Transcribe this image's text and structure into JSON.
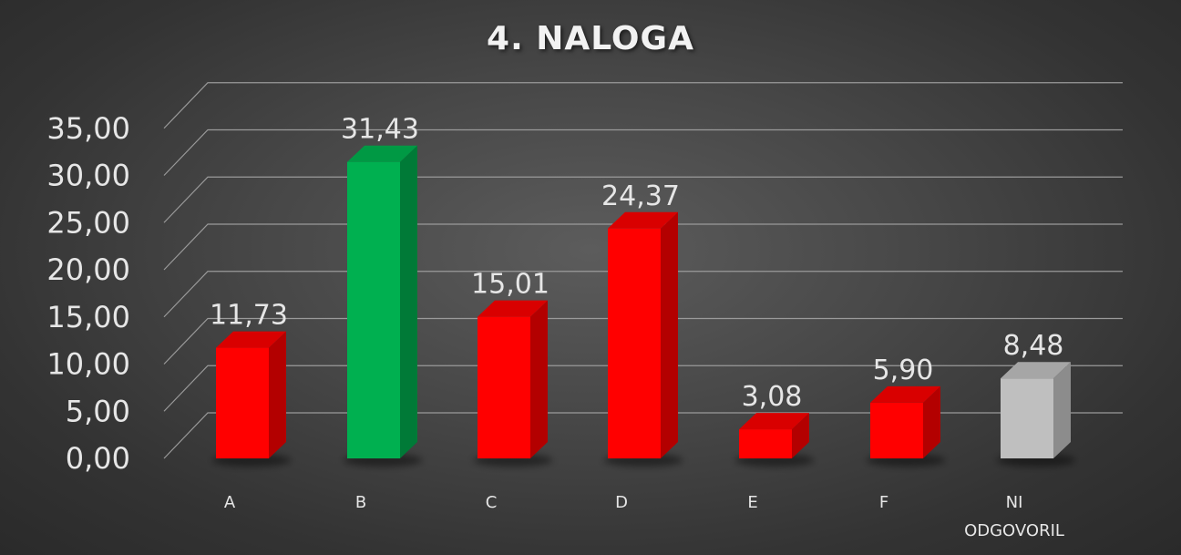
{
  "chart_data": {
    "type": "bar",
    "title": "4. NALOGA",
    "categories": [
      "A",
      "B",
      "C",
      "D",
      "E",
      "F",
      "NI ODGOVORIL"
    ],
    "category_lines": [
      [
        "A"
      ],
      [
        "B"
      ],
      [
        "C"
      ],
      [
        "D"
      ],
      [
        "E"
      ],
      [
        "F"
      ],
      [
        "NI",
        "ODGOVORIL"
      ]
    ],
    "values": [
      11.73,
      31.43,
      15.01,
      24.37,
      3.08,
      5.9,
      8.48
    ],
    "value_labels": [
      "11,73",
      "31,43",
      "15,01",
      "24,37",
      "3,08",
      "5,90",
      "8,48"
    ],
    "bar_colors": [
      "#ff0000",
      "#00b050",
      "#ff0000",
      "#ff0000",
      "#ff0000",
      "#ff0000",
      "#bfbfbf"
    ],
    "bar_side_colors": [
      "#b30000",
      "#007a37",
      "#b30000",
      "#b30000",
      "#b30000",
      "#b30000",
      "#8c8c8c"
    ],
    "bar_top_colors": [
      "#d90000",
      "#009944",
      "#d90000",
      "#d90000",
      "#d90000",
      "#d90000",
      "#a6a6a6"
    ],
    "ylim": [
      0,
      35
    ],
    "y_ticks": [
      0,
      5,
      10,
      15,
      20,
      25,
      30,
      35
    ],
    "y_tick_labels": [
      "0,00",
      "5,00",
      "10,00",
      "15,00",
      "20,00",
      "25,00",
      "30,00",
      "35,00"
    ],
    "xlabel": "",
    "ylabel": "",
    "grid": true,
    "legend": "none",
    "style": "3d-column"
  },
  "colors": {
    "gridline": "#9a9a9a",
    "text": "#e6e6e6"
  }
}
